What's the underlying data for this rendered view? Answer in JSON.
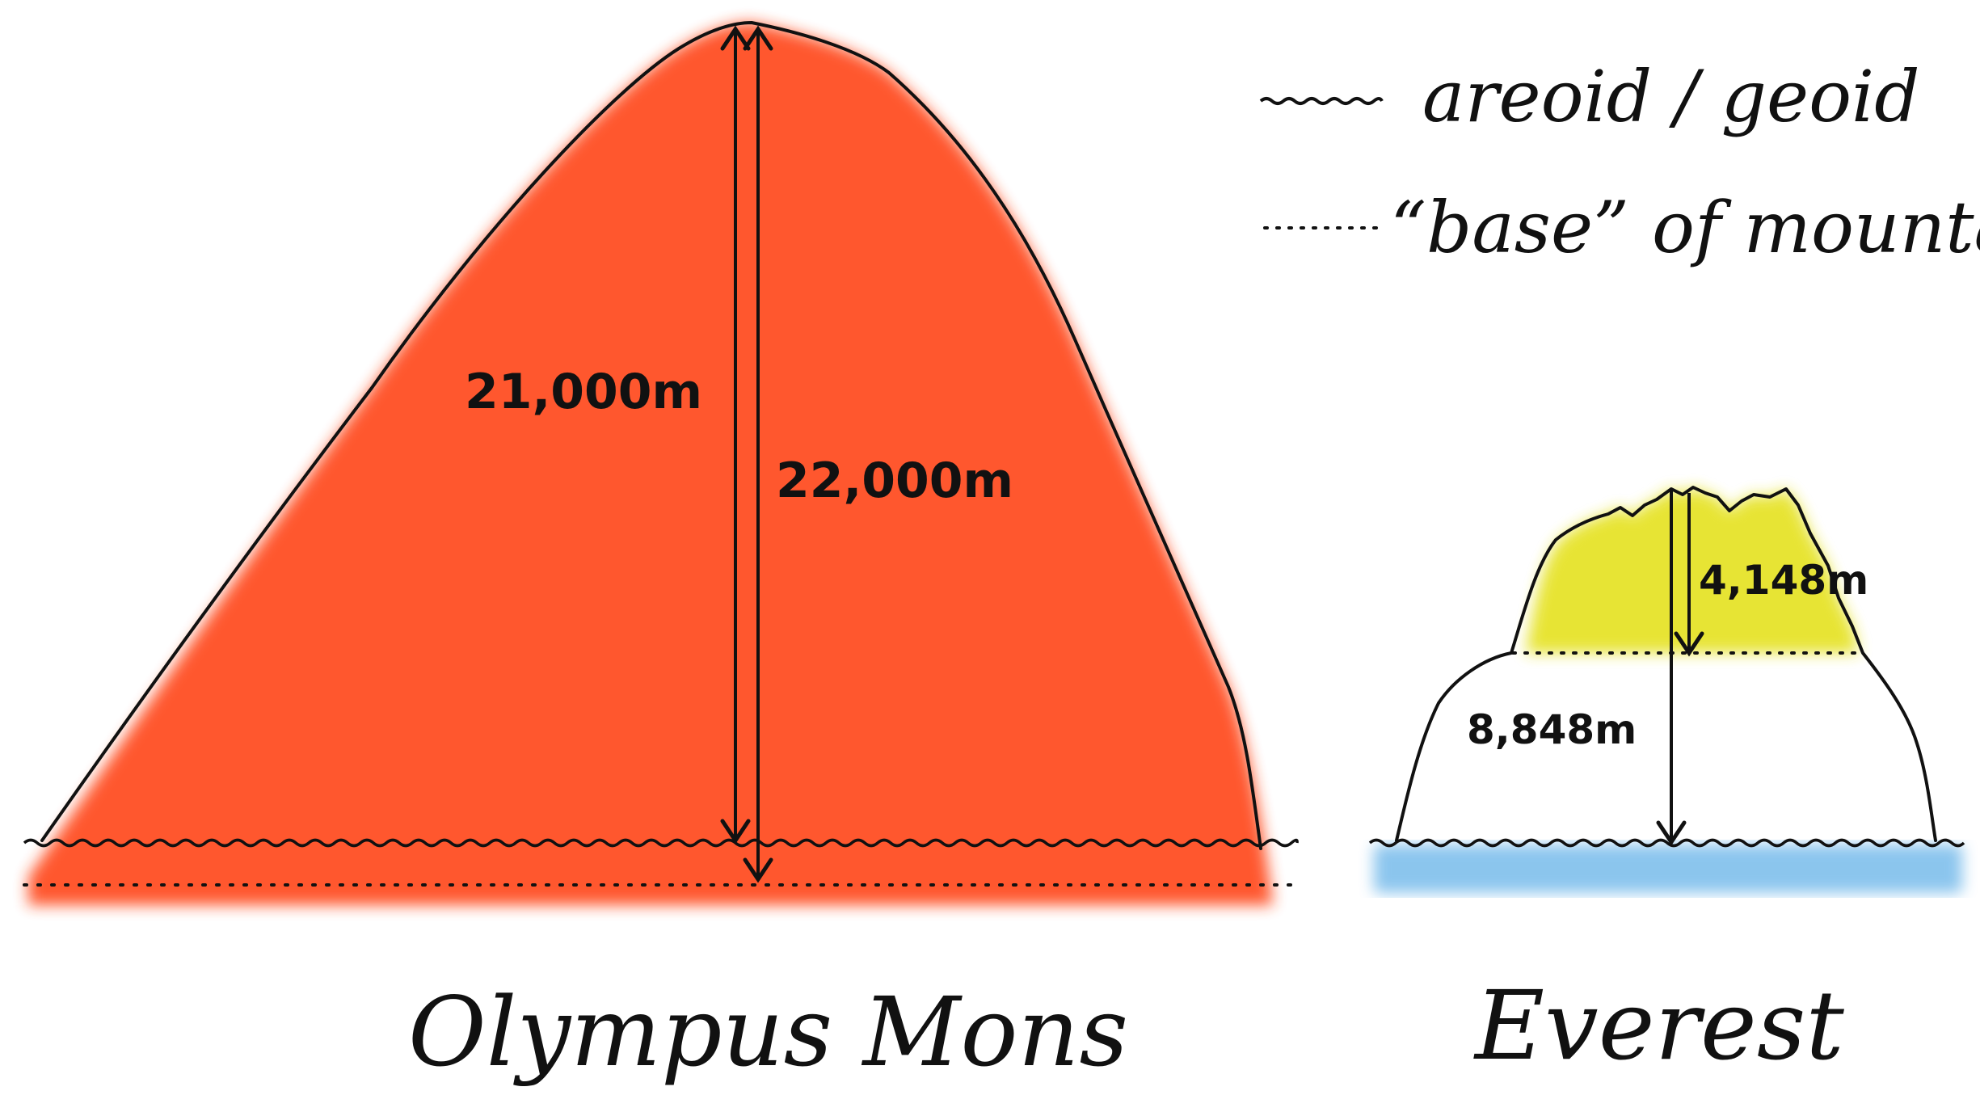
{
  "colors": {
    "olympus_fill": "#ff5128",
    "everest_summit_fill": "#e6e32a",
    "water_fill": "#7fbfec",
    "outline": "#111111"
  },
  "legend": {
    "areoid_label": "areoid / geoid",
    "base_label": "“base” of mountain",
    "areoid_symbol": "wavy-line",
    "base_symbol": "dotted-line"
  },
  "olympus": {
    "name": "Olympus Mons",
    "height_above_areoid": "21,000m",
    "height_above_base": "22,000m"
  },
  "everest": {
    "name": "Everest",
    "height_above_geoid": "8,848m",
    "height_above_base": "4,148m"
  }
}
